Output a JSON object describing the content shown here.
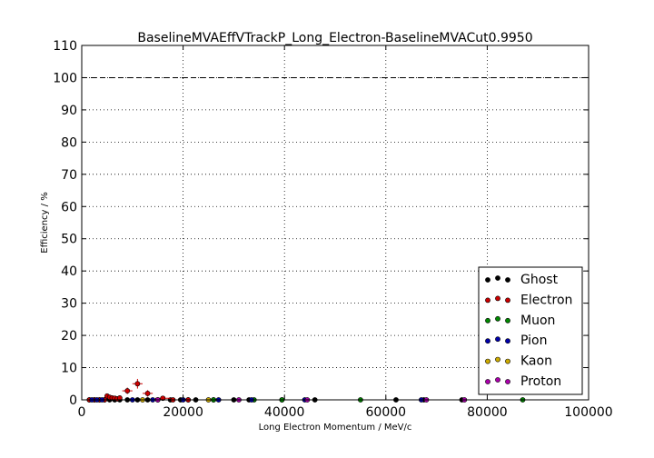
{
  "chart_data": {
    "type": "scatter",
    "title": "BaselineMVAEffVTrackP_Long_Electron-BaselineMVACut0.9950",
    "xlabel": "Long Electron Momentum / MeV/c",
    "ylabel": "Efficiency / %",
    "xlim": [
      0,
      100000
    ],
    "ylim": [
      0,
      110
    ],
    "xticks": [
      0,
      20000,
      40000,
      60000,
      80000,
      100000
    ],
    "xtick_labels": [
      "0",
      "20000",
      "40000",
      "60000",
      "80000",
      "100000"
    ],
    "yticks": [
      0,
      10,
      20,
      30,
      40,
      50,
      60,
      70,
      80,
      90,
      100,
      110
    ],
    "ytick_labels": [
      "0",
      "10",
      "20",
      "30",
      "40",
      "50",
      "60",
      "70",
      "80",
      "90",
      "100",
      "110"
    ],
    "grid": true,
    "reference_line": 100,
    "legend_position": "lower-right",
    "series": [
      {
        "name": "Ghost",
        "color": "#000000",
        "x": [
          1500,
          2500,
          3500,
          4500,
          5500,
          6500,
          7500,
          9000,
          11000,
          13000,
          15000,
          17500,
          19500,
          21000,
          22500,
          26000,
          30000,
          33000,
          39500,
          46000,
          62000,
          67500,
          75000
        ],
        "y": [
          0,
          0,
          0,
          0,
          0,
          0,
          0,
          0,
          0,
          0,
          0,
          0,
          0,
          0,
          0,
          0,
          0,
          0,
          0,
          0,
          0,
          0,
          0
        ]
      },
      {
        "name": "Electron",
        "color": "#cc0000",
        "x": [
          1500,
          2500,
          3500,
          4500,
          5000,
          5500,
          6000,
          6500,
          7000,
          7500,
          9000,
          11000,
          13000,
          16000,
          18000,
          21000
        ],
        "y": [
          0,
          0,
          0,
          0,
          1.2,
          0.8,
          0.6,
          0.5,
          0.3,
          0.6,
          2.8,
          5.0,
          2.0,
          0.5,
          0,
          0
        ],
        "xerr": [
          500,
          500,
          500,
          500,
          250,
          250,
          250,
          250,
          250,
          500,
          1000,
          1000,
          1000,
          1500,
          1000,
          1500
        ],
        "yerr": [
          0,
          0,
          0,
          0,
          0.6,
          0.4,
          0.3,
          0.3,
          0.2,
          0.3,
          1.0,
          1.5,
          1.0,
          0.4,
          0,
          0
        ]
      },
      {
        "name": "Muon",
        "color": "#008800",
        "x": [
          26000,
          34000,
          39500,
          55000,
          87000
        ],
        "y": [
          0,
          0,
          0,
          0,
          0
        ]
      },
      {
        "name": "Pion",
        "color": "#0000aa",
        "x": [
          2000,
          3000,
          4000,
          10000,
          14000,
          20000,
          27000,
          33500,
          44000,
          67000
        ],
        "y": [
          0,
          0,
          0,
          0,
          0,
          0,
          0,
          0,
          0,
          0
        ]
      },
      {
        "name": "Kaon",
        "color": "#ccaa00",
        "x": [
          12000,
          25000
        ],
        "y": [
          0,
          0
        ]
      },
      {
        "name": "Proton",
        "color": "#aa00aa",
        "x": [
          15000,
          31000,
          44500,
          68000,
          75500
        ],
        "y": [
          0,
          0,
          0,
          0,
          0
        ]
      }
    ]
  }
}
